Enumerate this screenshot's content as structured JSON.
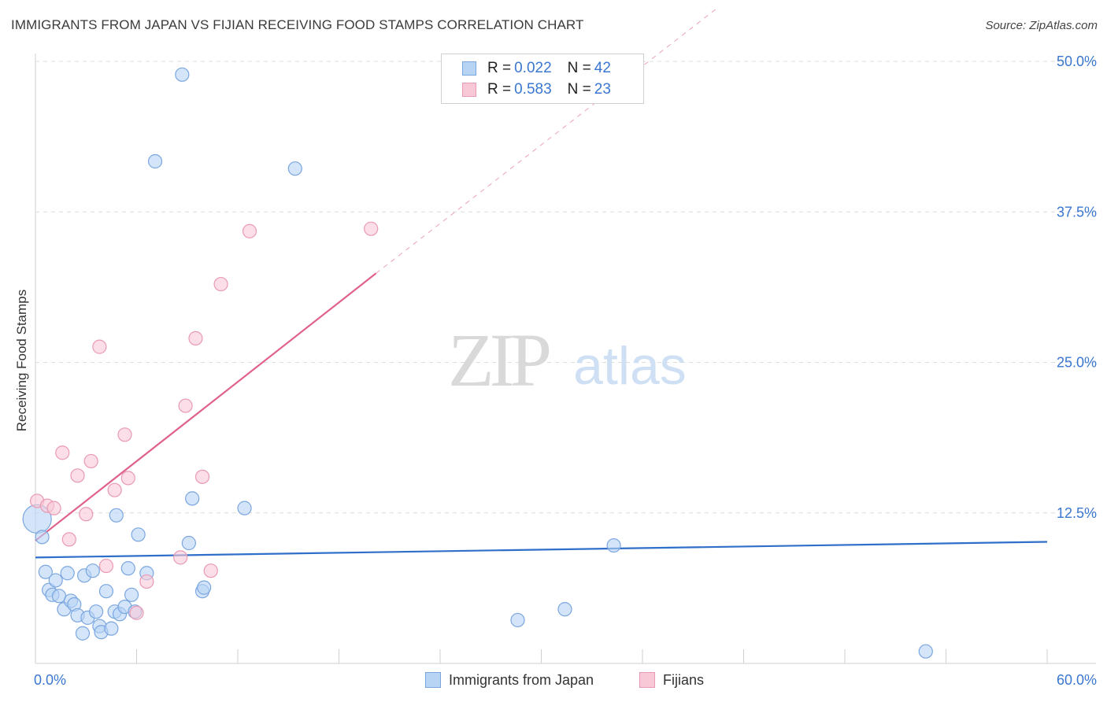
{
  "title": "IMMIGRANTS FROM JAPAN VS FIJIAN RECEIVING FOOD STAMPS CORRELATION CHART",
  "source": "Source: ZipAtlas.com",
  "watermark": {
    "zip": "ZIP",
    "atlas": "atlas"
  },
  "legend": {
    "rows": [
      {
        "r_label": "R =",
        "r_value": "0.022",
        "n_label": "N =",
        "n_value": "42"
      },
      {
        "r_label": "R =",
        "r_value": "0.583",
        "n_label": "N =",
        "n_value": "23"
      }
    ]
  },
  "colors": {
    "blue_fill": "#b8d4f5",
    "blue_stroke": "#7aa6e0",
    "blue_line": "#2f6fc9",
    "pink_fill": "#f8c8d7",
    "pink_stroke": "#e99ab3",
    "pink_line": "#e0628c",
    "tick_label": "#3a77d0"
  },
  "chart_data": {
    "type": "scatter",
    "title": "IMMIGRANTS FROM JAPAN VS FIJIAN RECEIVING FOOD STAMPS CORRELATION CHART",
    "xlabel": "",
    "ylabel": "Receiving Food Stamps",
    "xlim": [
      0,
      60
    ],
    "ylim": [
      0,
      50
    ],
    "x_tick_labels": [
      {
        "value": 0,
        "label": "0.0%"
      },
      {
        "value": 60,
        "label": "60.0%"
      }
    ],
    "y_tick_labels": [
      {
        "value": 12.5,
        "label": "12.5%"
      },
      {
        "value": 25,
        "label": "25.0%"
      },
      {
        "value": 37.5,
        "label": "37.5%"
      },
      {
        "value": 50,
        "label": "50.0%"
      }
    ],
    "series": [
      {
        "name": "Immigrants from Japan",
        "color": "blue",
        "r": 0.022,
        "n": 42,
        "trend": {
          "x0": 0,
          "y0": 8.8,
          "x1": 60,
          "y1": 10.1
        },
        "points": [
          [
            0.1,
            12.0
          ],
          [
            0.4,
            10.5
          ],
          [
            0.6,
            7.6
          ],
          [
            0.8,
            6.1
          ],
          [
            1.0,
            5.7
          ],
          [
            1.2,
            6.9
          ],
          [
            1.4,
            5.6
          ],
          [
            1.7,
            4.5
          ],
          [
            1.9,
            7.5
          ],
          [
            2.1,
            5.2
          ],
          [
            2.3,
            4.9
          ],
          [
            2.5,
            4.0
          ],
          [
            2.8,
            2.5
          ],
          [
            2.9,
            7.3
          ],
          [
            3.1,
            3.8
          ],
          [
            3.4,
            7.7
          ],
          [
            3.6,
            4.3
          ],
          [
            3.8,
            3.1
          ],
          [
            3.9,
            2.6
          ],
          [
            4.2,
            6.0
          ],
          [
            4.5,
            2.9
          ],
          [
            4.7,
            4.3
          ],
          [
            4.8,
            12.3
          ],
          [
            5.0,
            4.1
          ],
          [
            5.3,
            4.7
          ],
          [
            5.5,
            7.9
          ],
          [
            5.7,
            5.7
          ],
          [
            5.9,
            4.3
          ],
          [
            6.1,
            10.7
          ],
          [
            6.6,
            7.5
          ],
          [
            7.1,
            41.7
          ],
          [
            8.7,
            48.9
          ],
          [
            9.1,
            10.0
          ],
          [
            9.3,
            13.7
          ],
          [
            9.9,
            6.0
          ],
          [
            10.0,
            6.3
          ],
          [
            12.4,
            12.9
          ],
          [
            15.4,
            41.1
          ],
          [
            28.6,
            3.6
          ],
          [
            31.4,
            4.5
          ],
          [
            34.3,
            9.8
          ],
          [
            52.8,
            1.0
          ]
        ]
      },
      {
        "name": "Fijians",
        "color": "pink",
        "r": 0.583,
        "n": 23,
        "trend": {
          "x0": 0,
          "y0": 10.2,
          "x1": 20.2,
          "y1": 32.4
        },
        "trend_dashed": {
          "x0": 20.2,
          "y0": 32.4,
          "x1": 40.5,
          "y1": 54.5
        },
        "points": [
          [
            0.1,
            13.5
          ],
          [
            0.7,
            13.1
          ],
          [
            1.1,
            12.9
          ],
          [
            1.6,
            17.5
          ],
          [
            2.0,
            10.3
          ],
          [
            2.5,
            15.6
          ],
          [
            3.0,
            12.4
          ],
          [
            3.3,
            16.8
          ],
          [
            3.8,
            26.3
          ],
          [
            4.2,
            8.1
          ],
          [
            4.7,
            14.4
          ],
          [
            5.3,
            19.0
          ],
          [
            5.5,
            15.4
          ],
          [
            6.0,
            4.2
          ],
          [
            6.6,
            6.8
          ],
          [
            8.6,
            8.8
          ],
          [
            8.9,
            21.4
          ],
          [
            9.5,
            27.0
          ],
          [
            9.9,
            15.5
          ],
          [
            10.4,
            7.7
          ],
          [
            11.0,
            31.5
          ],
          [
            12.7,
            35.9
          ],
          [
            19.9,
            36.1
          ]
        ]
      }
    ]
  }
}
